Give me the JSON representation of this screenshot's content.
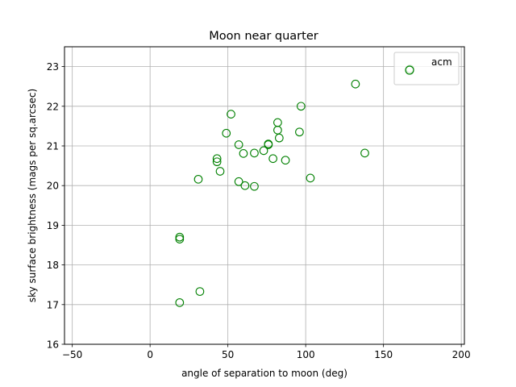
{
  "chart_data": {
    "type": "scatter",
    "title": "Moon near quarter",
    "xlabel": "angle of separation to moon (deg)",
    "ylabel": "sky surface brightness (mags per sq.arcsec)",
    "xlim": [
      -55,
      202
    ],
    "ylim": [
      16,
      23.5
    ],
    "xticks": [
      -50,
      0,
      50,
      100,
      150,
      200
    ],
    "yticks": [
      16,
      17,
      18,
      19,
      20,
      21,
      22,
      23
    ],
    "grid": true,
    "legend": "top-right",
    "marker": "open-circle",
    "series": [
      {
        "name": "acm",
        "color": "#008000",
        "points": [
          {
            "x": 19,
            "y": 17.05
          },
          {
            "x": 32,
            "y": 17.33
          },
          {
            "x": 19,
            "y": 18.65
          },
          {
            "x": 19,
            "y": 18.7
          },
          {
            "x": 31,
            "y": 20.16
          },
          {
            "x": 43,
            "y": 20.6
          },
          {
            "x": 43,
            "y": 20.68
          },
          {
            "x": 45,
            "y": 20.36
          },
          {
            "x": 49,
            "y": 21.32
          },
          {
            "x": 52,
            "y": 21.8
          },
          {
            "x": 57,
            "y": 20.1
          },
          {
            "x": 57,
            "y": 21.03
          },
          {
            "x": 60,
            "y": 20.81
          },
          {
            "x": 61,
            "y": 20.0
          },
          {
            "x": 67,
            "y": 19.98
          },
          {
            "x": 67,
            "y": 20.82
          },
          {
            "x": 73,
            "y": 20.88
          },
          {
            "x": 76,
            "y": 21.03
          },
          {
            "x": 76,
            "y": 21.05
          },
          {
            "x": 79,
            "y": 20.68
          },
          {
            "x": 82,
            "y": 21.4
          },
          {
            "x": 82,
            "y": 21.59
          },
          {
            "x": 83,
            "y": 21.2
          },
          {
            "x": 87,
            "y": 20.64
          },
          {
            "x": 96,
            "y": 21.35
          },
          {
            "x": 97,
            "y": 22.0
          },
          {
            "x": 103,
            "y": 20.19
          },
          {
            "x": 132,
            "y": 22.56
          },
          {
            "x": 138,
            "y": 20.82
          },
          {
            "x": 167,
            "y": 22.94
          }
        ]
      }
    ]
  }
}
